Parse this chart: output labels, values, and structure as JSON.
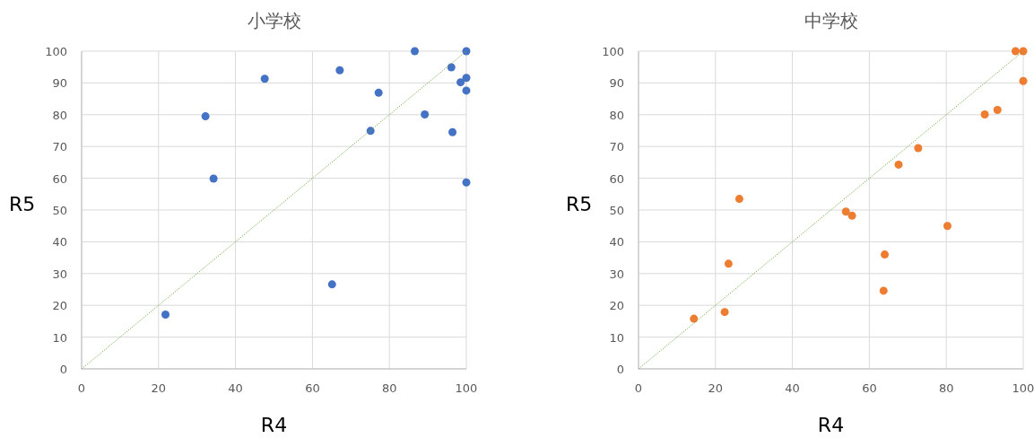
{
  "chart_data": [
    {
      "type": "scatter",
      "title": "小学校",
      "xlabel": "R4",
      "ylabel": "R5",
      "xlim": [
        0,
        100
      ],
      "ylim": [
        0,
        100
      ],
      "xticks": [
        0,
        20,
        40,
        60,
        80,
        100
      ],
      "yticks": [
        0,
        10,
        20,
        30,
        40,
        50,
        60,
        70,
        80,
        90,
        100
      ],
      "grid": true,
      "marker": "circle",
      "series": [
        {
          "color": "#4472c4",
          "x": [
            86.6,
            100,
            96.1,
            67.1,
            47.6,
            100,
            98.5,
            100,
            77.2,
            32.2,
            89.2,
            75.1,
            96.4,
            34.3,
            100,
            65.1,
            21.8
          ],
          "values": [
            100,
            100,
            94.9,
            94,
            91.3,
            91.6,
            90.2,
            87.6,
            86.9,
            79.5,
            80.1,
            74.9,
            74.5,
            59.9,
            58.7,
            26.6,
            17.1
          ]
        },
        {
          "type": "line",
          "color": "#70ad47",
          "line_style": "dotted",
          "marker": "none",
          "x": [
            0,
            100
          ],
          "values": [
            0,
            100
          ]
        }
      ]
    },
    {
      "type": "scatter",
      "title": "中学校",
      "xlabel": "R4",
      "ylabel": "R5",
      "xlim": [
        0,
        100
      ],
      "ylim": [
        0,
        100
      ],
      "xticks": [
        0,
        20,
        40,
        60,
        80,
        100
      ],
      "yticks": [
        0,
        10,
        20,
        30,
        40,
        50,
        60,
        70,
        80,
        90,
        100
      ],
      "grid": true,
      "marker": "circle",
      "series": [
        {
          "color": "#ed7d31",
          "x": [
            98,
            100,
            100,
            90,
            93.3,
            72.7,
            67.6,
            26.2,
            53.9,
            55.5,
            80.3,
            64,
            23.4,
            63.7,
            22.4,
            14.4
          ],
          "values": [
            100,
            100,
            90.6,
            80.1,
            81.5,
            69.5,
            64.3,
            53.5,
            49.5,
            48.2,
            45,
            36,
            33.1,
            24.6,
            17.9,
            15.8
          ]
        },
        {
          "type": "line",
          "color": "#70ad47",
          "line_style": "dotted",
          "marker": "none",
          "x": [
            0,
            100
          ],
          "values": [
            0,
            100
          ]
        }
      ]
    }
  ]
}
